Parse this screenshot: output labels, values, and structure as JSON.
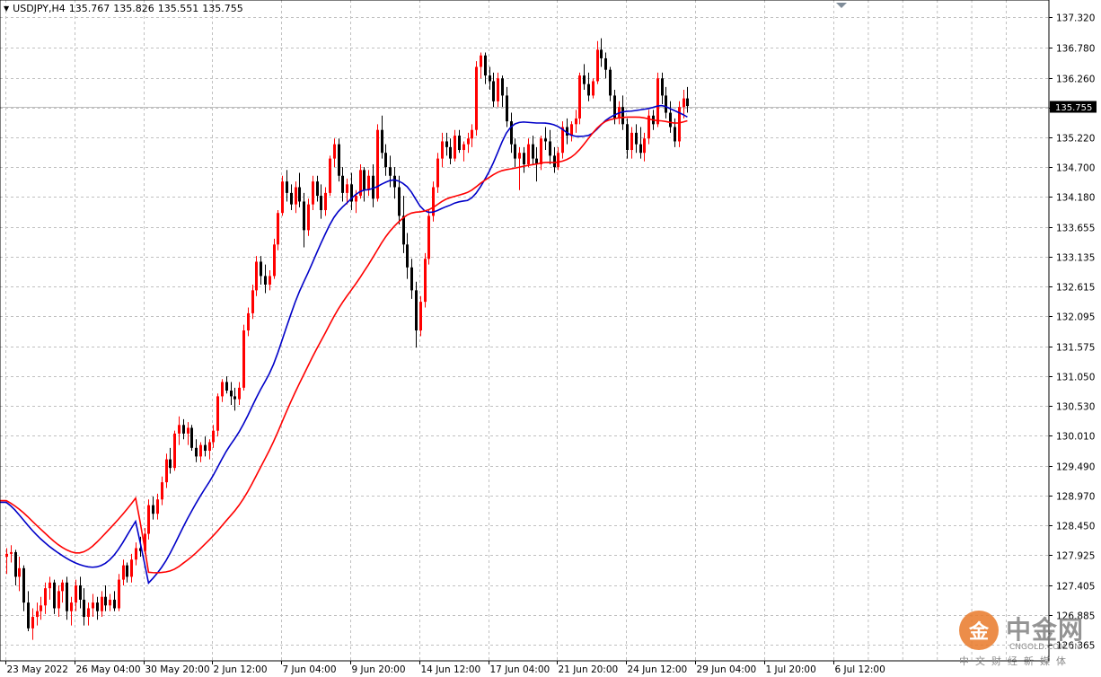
{
  "header": {
    "symbol": "USDJPY,H4",
    "open": "135.767",
    "high": "135.826",
    "low": "135.551",
    "close": "135.755"
  },
  "current_price_label": "135.755",
  "watermark": {
    "logo_char": "金",
    "name": "中金网",
    "domain": "CNGOLD.COM.CN",
    "subtitle": "中文财经新媒体"
  },
  "colors": {
    "background": "#ffffff",
    "grid": "#c0c0c0",
    "bull_candle": "#ff0000",
    "bear_candle": "#000000",
    "ma_fast": "#0000c8",
    "ma_slow": "#ff0000",
    "price_line": "#c0c0c0"
  },
  "chart_data": {
    "type": "candlestick",
    "symbol": "USDJPY",
    "timeframe": "H4",
    "y_ticks": [
      "137.320",
      "136.780",
      "136.260",
      "135.740",
      "135.220",
      "134.700",
      "134.180",
      "133.655",
      "133.135",
      "132.615",
      "132.095",
      "131.575",
      "131.050",
      "130.530",
      "130.010",
      "129.490",
      "128.970",
      "128.450",
      "127.925",
      "127.405",
      "126.885",
      "126.365"
    ],
    "ylim": [
      126.2,
      137.55
    ],
    "x_tick_labels": [
      "23 May 2022",
      "26 May 04:00",
      "30 May 20:00",
      "2 Jun 12:00",
      "7 Jun 04:00",
      "9 Jun 20:00",
      "14 Jun 12:00",
      "17 Jun 04:00",
      "21 Jun 20:00",
      "24 Jun 12:00",
      "29 Jun 04:00",
      "1 Jul 20:00",
      "6 Jul 12:00"
    ],
    "x_tick_bar_index": [
      0,
      16,
      32,
      48,
      64,
      80,
      96,
      112,
      128,
      144,
      160,
      176,
      192
    ],
    "grid": true,
    "last_price": 135.755,
    "ohlc": [
      [
        127.9,
        128.05,
        127.6,
        127.95
      ],
      [
        127.95,
        128.1,
        127.8,
        127.98
      ],
      [
        127.98,
        128.02,
        127.4,
        127.55
      ],
      [
        127.55,
        127.9,
        127.3,
        127.7
      ],
      [
        127.7,
        127.75,
        126.95,
        127.1
      ],
      [
        127.1,
        127.3,
        126.6,
        126.65
      ],
      [
        126.65,
        127.0,
        126.45,
        126.85
      ],
      [
        126.85,
        127.1,
        126.7,
        126.95
      ],
      [
        126.95,
        127.2,
        126.8,
        127.05
      ],
      [
        127.05,
        127.45,
        126.9,
        127.35
      ],
      [
        127.35,
        127.55,
        127.15,
        127.45
      ],
      [
        127.45,
        127.5,
        126.9,
        127.0
      ],
      [
        127.0,
        127.4,
        126.85,
        127.3
      ],
      [
        127.3,
        127.5,
        127.1,
        127.45
      ],
      [
        127.45,
        127.55,
        126.8,
        126.95
      ],
      [
        126.95,
        127.2,
        126.7,
        127.1
      ],
      [
        127.1,
        127.5,
        126.95,
        127.4
      ],
      [
        127.4,
        127.55,
        127.0,
        127.15
      ],
      [
        127.15,
        127.35,
        126.7,
        126.85
      ],
      [
        126.85,
        127.1,
        126.7,
        127.0
      ],
      [
        127.0,
        127.25,
        126.85,
        127.1
      ],
      [
        127.1,
        127.2,
        126.8,
        126.95
      ],
      [
        126.95,
        127.3,
        126.85,
        127.2
      ],
      [
        127.2,
        127.4,
        126.95,
        127.05
      ],
      [
        127.05,
        127.25,
        126.95,
        127.15
      ],
      [
        127.15,
        127.3,
        126.95,
        127.0
      ],
      [
        127.0,
        127.6,
        126.95,
        127.5
      ],
      [
        127.5,
        127.85,
        127.4,
        127.75
      ],
      [
        127.75,
        127.8,
        127.45,
        127.55
      ],
      [
        127.55,
        127.95,
        127.45,
        127.85
      ],
      [
        127.85,
        128.15,
        127.75,
        128.05
      ],
      [
        128.05,
        128.25,
        127.9,
        128.0
      ],
      [
        128.0,
        128.4,
        127.95,
        128.3
      ],
      [
        128.3,
        128.9,
        128.2,
        128.8
      ],
      [
        128.8,
        128.95,
        128.55,
        128.65
      ],
      [
        128.65,
        129.0,
        128.55,
        128.9
      ],
      [
        128.9,
        129.3,
        128.8,
        129.2
      ],
      [
        129.2,
        129.7,
        129.1,
        129.6
      ],
      [
        129.6,
        129.8,
        129.35,
        129.45
      ],
      [
        129.45,
        130.1,
        129.4,
        130.05
      ],
      [
        130.05,
        130.35,
        129.85,
        130.2
      ],
      [
        130.2,
        130.3,
        129.95,
        130.05
      ],
      [
        130.05,
        130.25,
        129.85,
        130.15
      ],
      [
        130.15,
        130.2,
        129.75,
        129.8
      ],
      [
        129.8,
        129.95,
        129.55,
        129.65
      ],
      [
        129.65,
        129.9,
        129.55,
        129.85
      ],
      [
        129.85,
        130.0,
        129.65,
        129.75
      ],
      [
        129.75,
        129.95,
        129.6,
        129.9
      ],
      [
        129.9,
        130.2,
        129.8,
        130.1
      ],
      [
        130.1,
        130.75,
        130.0,
        130.7
      ],
      [
        130.7,
        131.0,
        130.6,
        130.95
      ],
      [
        130.95,
        131.05,
        130.75,
        130.8
      ],
      [
        130.8,
        130.95,
        130.55,
        130.7
      ],
      [
        130.7,
        130.85,
        130.45,
        130.65
      ],
      [
        130.65,
        130.95,
        130.55,
        130.85
      ],
      [
        130.85,
        131.95,
        130.8,
        131.85
      ],
      [
        131.85,
        132.25,
        131.75,
        132.15
      ],
      [
        132.15,
        132.65,
        132.05,
        132.55
      ],
      [
        132.55,
        133.15,
        132.45,
        133.05
      ],
      [
        133.05,
        133.15,
        132.65,
        132.8
      ],
      [
        132.8,
        133.0,
        132.5,
        132.65
      ],
      [
        132.65,
        132.9,
        132.55,
        132.8
      ],
      [
        132.8,
        133.45,
        132.75,
        133.35
      ],
      [
        133.35,
        133.95,
        133.25,
        133.9
      ],
      [
        133.9,
        134.55,
        133.85,
        134.45
      ],
      [
        134.45,
        134.65,
        134.1,
        134.25
      ],
      [
        134.25,
        134.4,
        133.95,
        134.05
      ],
      [
        134.05,
        134.45,
        133.9,
        134.35
      ],
      [
        134.35,
        134.6,
        134.0,
        134.1
      ],
      [
        134.1,
        134.25,
        133.3,
        133.6
      ],
      [
        133.6,
        134.15,
        133.5,
        134.05
      ],
      [
        134.05,
        134.55,
        133.95,
        134.45
      ],
      [
        134.45,
        134.55,
        134.1,
        134.2
      ],
      [
        134.2,
        134.4,
        133.8,
        133.95
      ],
      [
        133.95,
        134.35,
        133.85,
        134.25
      ],
      [
        134.25,
        134.9,
        134.2,
        134.85
      ],
      [
        134.85,
        135.2,
        134.7,
        135.1
      ],
      [
        135.1,
        135.2,
        134.45,
        134.55
      ],
      [
        134.55,
        134.7,
        134.1,
        134.25
      ],
      [
        134.25,
        134.5,
        134.05,
        134.4
      ],
      [
        134.4,
        134.6,
        133.95,
        134.1
      ],
      [
        134.1,
        134.3,
        133.9,
        134.2
      ],
      [
        134.2,
        134.75,
        134.15,
        134.65
      ],
      [
        134.65,
        134.7,
        134.1,
        134.3
      ],
      [
        134.3,
        134.65,
        134.2,
        134.55
      ],
      [
        134.55,
        134.75,
        134.0,
        134.15
      ],
      [
        134.15,
        135.45,
        134.1,
        135.35
      ],
      [
        135.35,
        135.6,
        134.85,
        134.95
      ],
      [
        134.95,
        135.1,
        134.55,
        134.7
      ],
      [
        134.7,
        134.9,
        134.35,
        134.55
      ],
      [
        134.55,
        134.7,
        134.15,
        134.35
      ],
      [
        134.35,
        134.55,
        133.7,
        133.85
      ],
      [
        133.85,
        134.2,
        133.2,
        133.35
      ],
      [
        133.35,
        133.55,
        132.75,
        132.95
      ],
      [
        132.95,
        133.1,
        132.4,
        132.55
      ],
      [
        132.55,
        132.7,
        131.55,
        131.85
      ],
      [
        131.85,
        132.45,
        131.75,
        132.35
      ],
      [
        132.35,
        133.2,
        132.25,
        133.1
      ],
      [
        133.1,
        133.95,
        133.0,
        133.85
      ],
      [
        133.85,
        134.45,
        133.75,
        134.35
      ],
      [
        134.35,
        134.95,
        134.25,
        134.85
      ],
      [
        134.85,
        135.3,
        134.7,
        135.15
      ],
      [
        135.15,
        135.3,
        134.9,
        135.05
      ],
      [
        135.05,
        135.2,
        134.75,
        134.85
      ],
      [
        134.85,
        135.35,
        134.8,
        135.25
      ],
      [
        135.25,
        135.35,
        134.95,
        135.0
      ],
      [
        135.0,
        135.15,
        134.8,
        135.1
      ],
      [
        135.1,
        135.3,
        134.95,
        135.2
      ],
      [
        135.2,
        135.45,
        135.05,
        135.35
      ],
      [
        135.35,
        136.55,
        135.25,
        136.45
      ],
      [
        136.45,
        136.7,
        136.25,
        136.65
      ],
      [
        136.65,
        136.7,
        136.15,
        136.3
      ],
      [
        136.3,
        136.45,
        136.05,
        136.2
      ],
      [
        136.2,
        136.35,
        135.75,
        135.85
      ],
      [
        135.85,
        136.35,
        135.75,
        136.25
      ],
      [
        136.25,
        136.3,
        135.75,
        135.95
      ],
      [
        135.95,
        136.1,
        135.4,
        135.5
      ],
      [
        135.5,
        135.65,
        134.95,
        135.1
      ],
      [
        135.1,
        135.2,
        134.7,
        134.85
      ],
      [
        134.85,
        135.05,
        134.3,
        134.95
      ],
      [
        134.95,
        135.05,
        134.6,
        134.75
      ],
      [
        134.75,
        135.2,
        134.7,
        135.1
      ],
      [
        135.1,
        135.25,
        134.75,
        134.85
      ],
      [
        134.85,
        135.05,
        134.45,
        134.75
      ],
      [
        134.75,
        135.25,
        134.65,
        135.2
      ],
      [
        135.2,
        135.4,
        135.0,
        135.15
      ],
      [
        135.15,
        135.35,
        134.75,
        134.9
      ],
      [
        134.9,
        135.05,
        134.6,
        134.7
      ],
      [
        134.7,
        135.05,
        134.65,
        134.95
      ],
      [
        134.95,
        135.5,
        134.85,
        135.4
      ],
      [
        135.4,
        135.55,
        135.1,
        135.25
      ],
      [
        135.25,
        135.5,
        135.15,
        135.45
      ],
      [
        135.45,
        135.7,
        135.3,
        135.55
      ],
      [
        135.55,
        136.35,
        135.45,
        136.3
      ],
      [
        136.3,
        136.5,
        136.05,
        136.15
      ],
      [
        136.15,
        136.35,
        135.85,
        135.95
      ],
      [
        135.95,
        136.25,
        135.9,
        136.2
      ],
      [
        136.2,
        136.9,
        136.15,
        136.75
      ],
      [
        136.75,
        136.95,
        136.45,
        136.6
      ],
      [
        136.6,
        136.7,
        136.25,
        136.4
      ],
      [
        136.4,
        136.45,
        135.85,
        135.95
      ],
      [
        135.95,
        136.05,
        135.45,
        135.55
      ],
      [
        135.55,
        135.85,
        135.45,
        135.75
      ],
      [
        135.75,
        135.95,
        135.35,
        135.45
      ],
      [
        135.45,
        135.55,
        134.85,
        135.0
      ],
      [
        135.0,
        135.4,
        134.85,
        135.3
      ],
      [
        135.3,
        135.45,
        134.95,
        135.1
      ],
      [
        135.1,
        135.4,
        134.85,
        134.95
      ],
      [
        134.95,
        135.3,
        134.8,
        135.2
      ],
      [
        135.2,
        135.7,
        135.1,
        135.6
      ],
      [
        135.6,
        135.7,
        135.35,
        135.45
      ],
      [
        135.45,
        136.35,
        135.4,
        136.25
      ],
      [
        136.25,
        136.35,
        135.8,
        135.95
      ],
      [
        135.95,
        136.1,
        135.55,
        135.65
      ],
      [
        135.65,
        135.85,
        135.3,
        135.4
      ],
      [
        135.4,
        135.55,
        135.05,
        135.15
      ],
      [
        135.15,
        135.85,
        135.05,
        135.75
      ],
      [
        135.75,
        136.05,
        135.55,
        135.9
      ],
      [
        135.9,
        136.1,
        135.65,
        135.767
      ]
    ],
    "ma_fast": {
      "type": "moving average (blue)",
      "values_start": [
        128.85,
        128.8,
        128.72,
        128.63,
        128.54,
        128.45,
        128.36,
        128.28,
        128.21,
        128.14,
        128.08,
        128.02,
        127.97,
        127.92,
        127.87,
        127.83,
        127.79,
        127.76,
        127.74,
        127.72,
        127.71,
        127.72,
        127.74,
        127.78,
        127.84,
        127.92,
        128.02,
        128.14,
        128.27,
        128.4,
        128.52,
        128.63
      ]
    },
    "ma_slow": {
      "type": "moving average (red)",
      "values_start": [
        128.88,
        128.84,
        128.79,
        128.73,
        128.67,
        128.6,
        128.52,
        128.45,
        128.38,
        128.31,
        128.24,
        128.17,
        128.11,
        128.06,
        128.02,
        127.98,
        127.96,
        127.96,
        127.98,
        128.02,
        128.08,
        128.15,
        128.23,
        128.31,
        128.39,
        128.47,
        128.55,
        128.64,
        128.73,
        128.82,
        128.92,
        129.03
      ]
    }
  }
}
